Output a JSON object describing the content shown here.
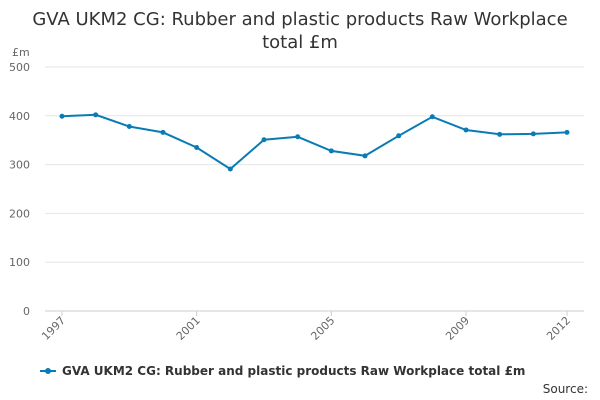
{
  "chart_data": {
    "type": "line",
    "title": "GVA UKM2 CG: Rubber and plastic products Raw Workplace total £m",
    "ylabel": "£m",
    "xlabel": "",
    "x": [
      1997,
      1998,
      1999,
      2000,
      2001,
      2002,
      2003,
      2004,
      2005,
      2006,
      2007,
      2008,
      2009,
      2010,
      2011,
      2012
    ],
    "x_tick_labels": [
      "1997",
      "2001",
      "2005",
      "2009",
      "2012"
    ],
    "y_ticks": [
      0,
      100,
      200,
      300,
      400,
      500
    ],
    "ylim": [
      0,
      500
    ],
    "grid": true,
    "legend_position": "bottom",
    "series": [
      {
        "name": "GVA UKM2 CG: Rubber and plastic products Raw Workplace total £m",
        "color": "#0a7bb5",
        "values": [
          399,
          402,
          378,
          366,
          335,
          291,
          351,
          357,
          328,
          318,
          359,
          398,
          371,
          362,
          363,
          366
        ]
      }
    ],
    "source_label": "Source:"
  }
}
